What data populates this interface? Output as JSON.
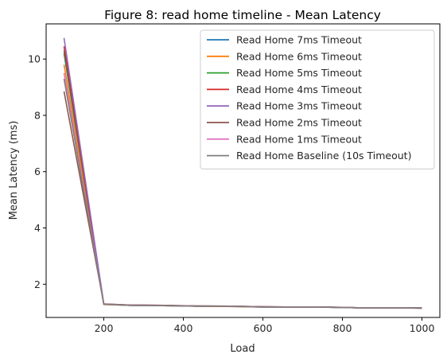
{
  "chart_data": {
    "type": "line",
    "title": "Figure 8: read home timeline - Mean Latency",
    "xlabel": "Load",
    "ylabel": "Mean Latency (ms)",
    "xlim": [
      55,
      1045
    ],
    "ylim": [
      0.82,
      11.25
    ],
    "xticks": [
      200,
      400,
      600,
      800,
      1000
    ],
    "yticks": [
      2,
      4,
      6,
      8,
      10
    ],
    "grid": false,
    "legend_position": "top-right",
    "x": [
      100,
      200,
      266,
      350,
      433,
      516,
      600,
      683,
      766,
      850,
      933,
      1000
    ],
    "series": [
      {
        "name": "Read Home 7ms Timeout",
        "color": "#1f77b4",
        "values": [
          10.2,
          1.28,
          1.25,
          1.24,
          1.22,
          1.21,
          1.19,
          1.19,
          1.18,
          1.16,
          1.16,
          1.15
        ]
      },
      {
        "name": "Read Home 6ms Timeout",
        "color": "#ff7f0e",
        "values": [
          9.8,
          1.28,
          1.25,
          1.24,
          1.22,
          1.21,
          1.19,
          1.19,
          1.18,
          1.16,
          1.16,
          1.15
        ]
      },
      {
        "name": "Read Home 5ms Timeout",
        "color": "#2ca02c",
        "values": [
          10.3,
          1.29,
          1.25,
          1.24,
          1.22,
          1.22,
          1.19,
          1.19,
          1.18,
          1.16,
          1.16,
          1.15
        ]
      },
      {
        "name": "Read Home 4ms Timeout",
        "color": "#d62728",
        "values": [
          10.45,
          1.29,
          1.26,
          1.25,
          1.22,
          1.22,
          1.2,
          1.19,
          1.18,
          1.16,
          1.16,
          1.15
        ]
      },
      {
        "name": "Read Home 3ms Timeout",
        "color": "#9467bd",
        "values": [
          10.75,
          1.3,
          1.26,
          1.25,
          1.23,
          1.22,
          1.2,
          1.19,
          1.19,
          1.16,
          1.16,
          1.16
        ]
      },
      {
        "name": "Read Home 2ms Timeout",
        "color": "#8c564b",
        "values": [
          8.85,
          1.3,
          1.26,
          1.25,
          1.23,
          1.22,
          1.2,
          1.19,
          1.19,
          1.16,
          1.16,
          1.16
        ]
      },
      {
        "name": "Read Home 1ms Timeout",
        "color": "#e377c2",
        "values": [
          9.5,
          1.29,
          1.25,
          1.24,
          1.22,
          1.22,
          1.19,
          1.19,
          1.18,
          1.16,
          1.16,
          1.15
        ]
      },
      {
        "name": "Read Home Baseline (10s Timeout)",
        "color": "#7f7f7f",
        "values": [
          9.3,
          1.29,
          1.25,
          1.24,
          1.22,
          1.22,
          1.19,
          1.19,
          1.18,
          1.16,
          1.16,
          1.15
        ]
      }
    ]
  }
}
